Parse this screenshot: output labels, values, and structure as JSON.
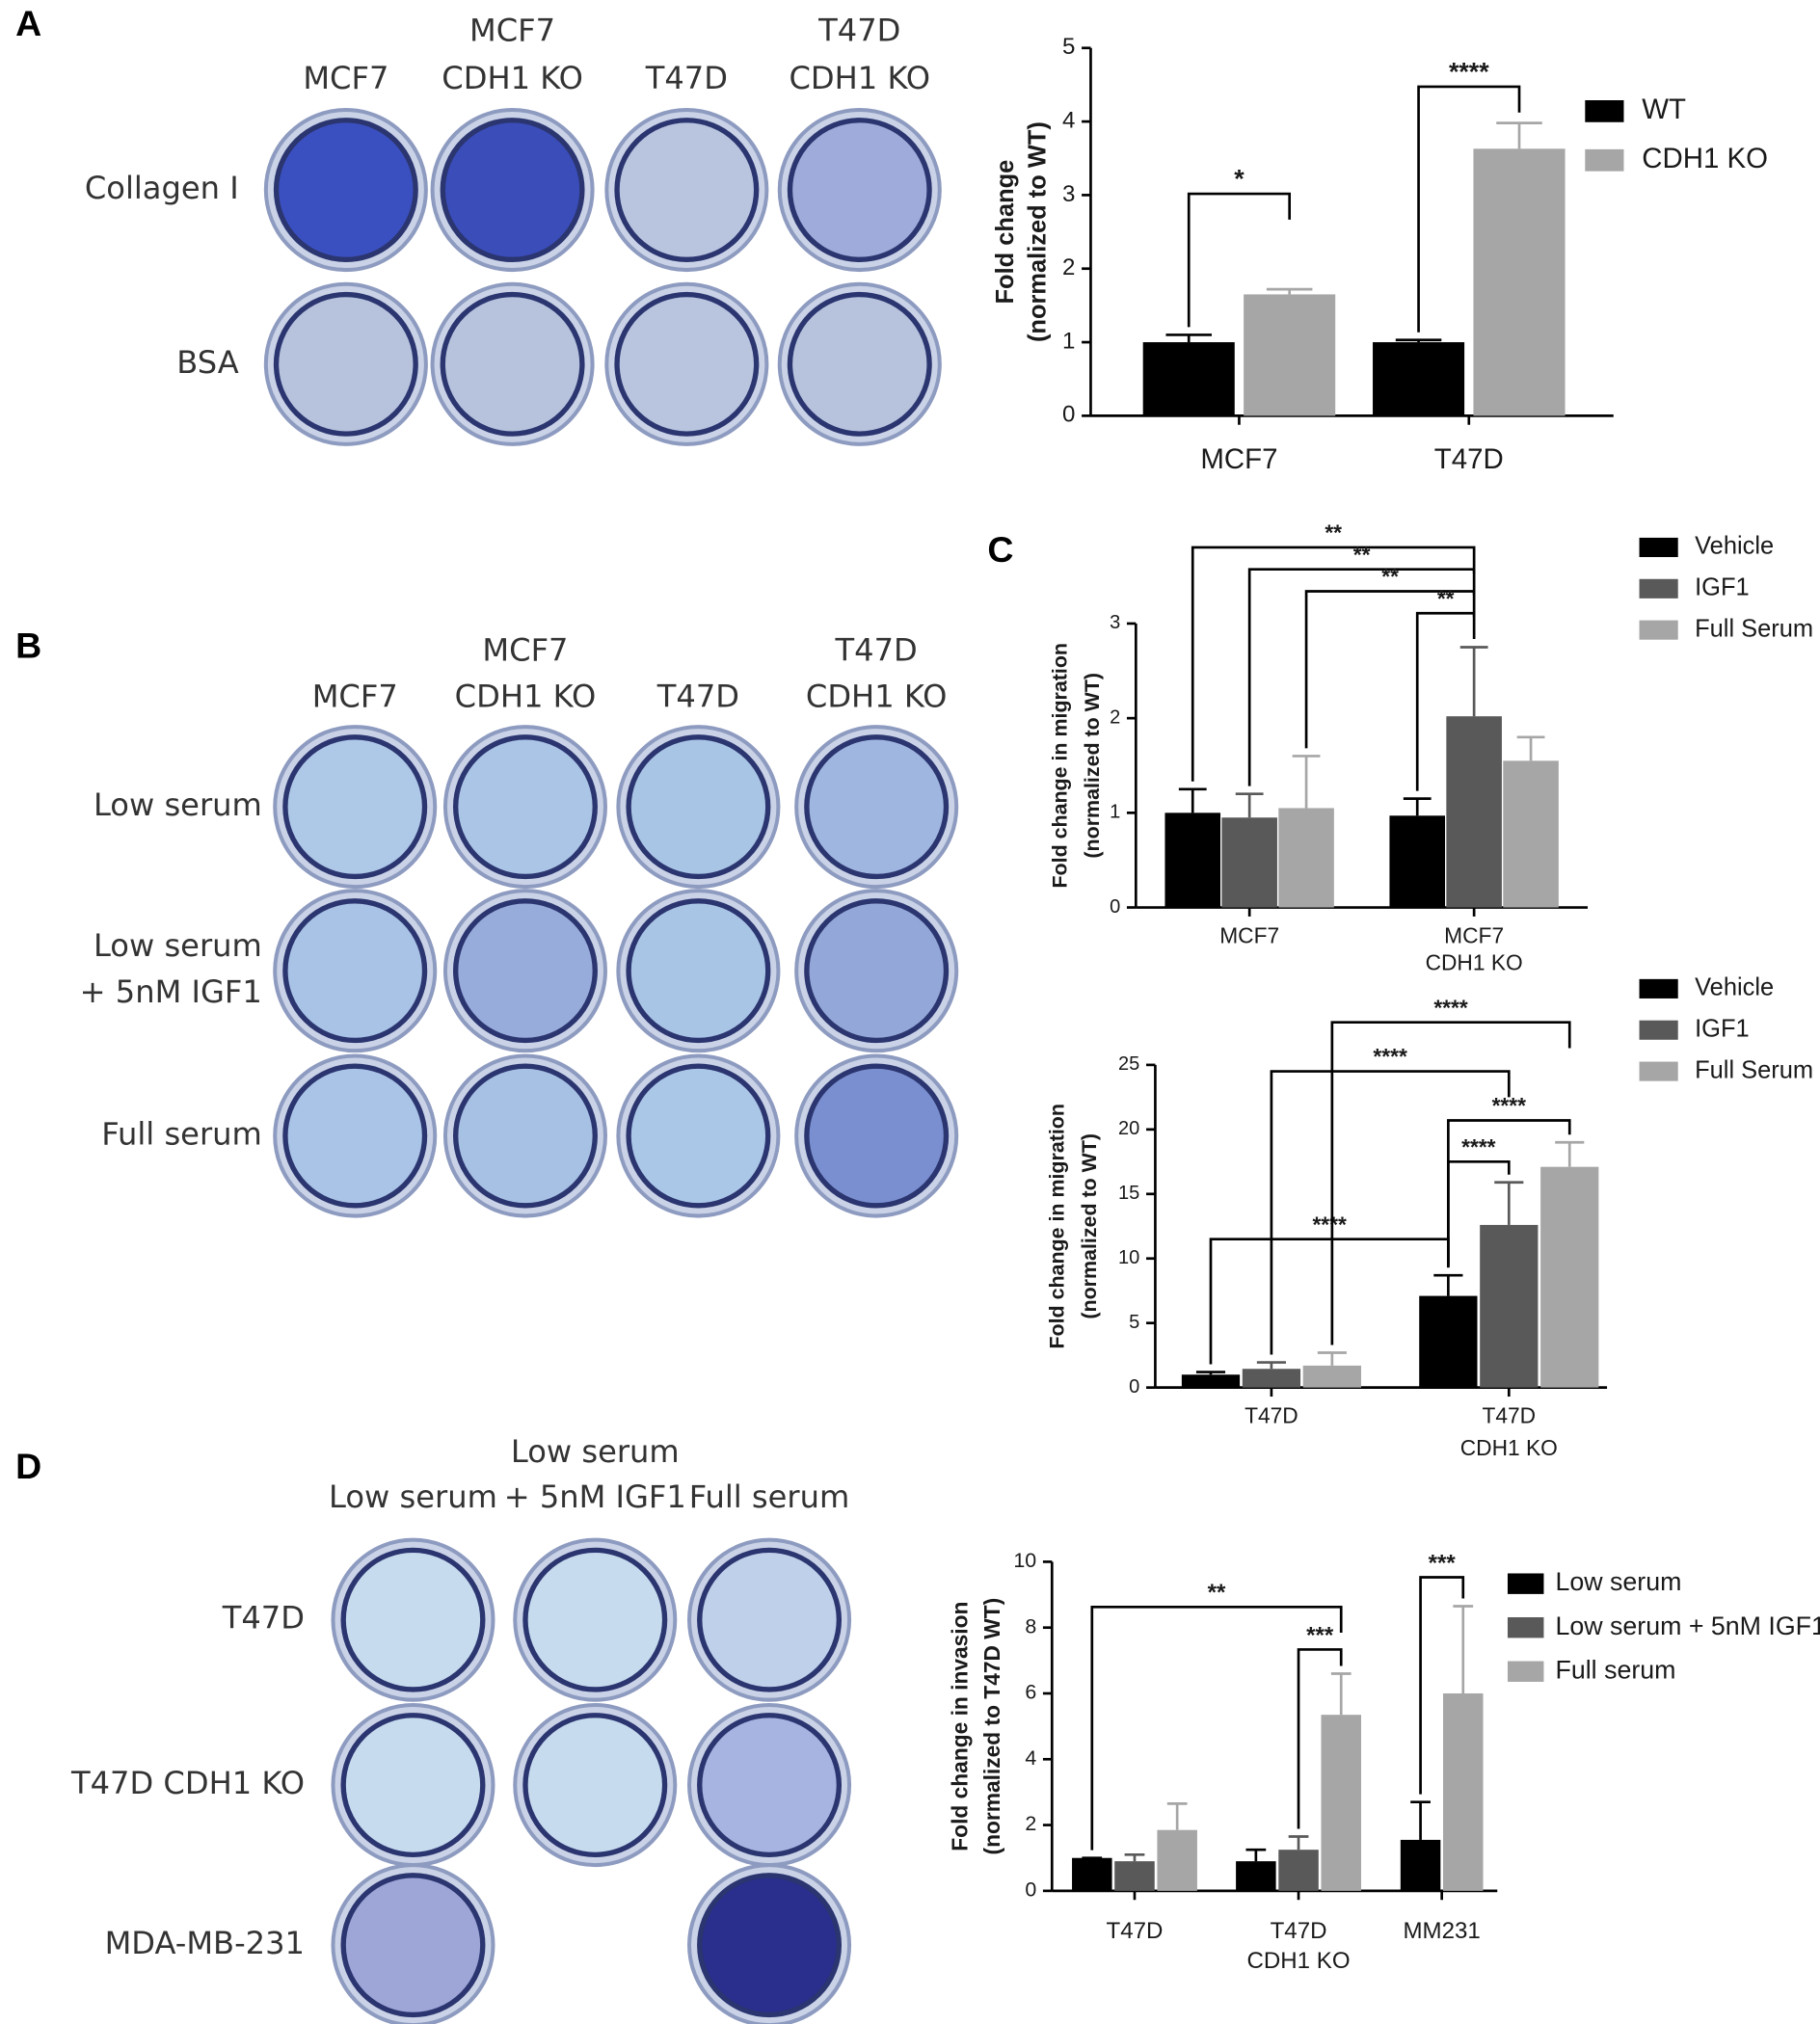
{
  "panel_labels": [
    "A",
    "B",
    "C",
    "D"
  ],
  "wells": [
    {
      "columns": [
        [
          "MCF7"
        ],
        [
          "MCF7",
          "CDH1 KO"
        ],
        [
          "T47D"
        ],
        [
          "T47D",
          "CDH1 KO"
        ]
      ],
      "rows": [
        [
          "Collagen I"
        ],
        [
          "BSA"
        ]
      ]
    },
    {
      "columns": [
        [
          "MCF7"
        ],
        [
          "MCF7",
          "CDH1 KO"
        ],
        [
          "T47D"
        ],
        [
          "T47D",
          "CDH1 KO"
        ]
      ],
      "rows": [
        [
          "Low serum"
        ],
        [
          "Low serum",
          "+ 5nM IGF1"
        ],
        [
          "Full serum"
        ]
      ]
    },
    {
      "columns": [
        [
          "Low serum"
        ],
        [
          "Low serum",
          "+ 5nM IGF1"
        ],
        [
          "Full serum"
        ]
      ],
      "rows": [
        [
          "T47D"
        ],
        [
          "T47D CDH1 KO"
        ],
        [
          "MDA-MB-231"
        ]
      ]
    }
  ],
  "chart_data": [
    {
      "type": "bar",
      "ylabel": [
        "Fold change",
        "(normalized to WT)"
      ],
      "categories": [
        [
          "MCF7"
        ],
        [
          "T47D"
        ]
      ],
      "series": [
        {
          "name": "WT",
          "color": "#000000",
          "values": [
            1.0,
            1.0
          ],
          "errors": [
            0.1,
            0.03
          ]
        },
        {
          "name": "CDH1 KO",
          "color": "#a6a6a6",
          "values": [
            1.65,
            3.63
          ],
          "errors": [
            0.07,
            0.35
          ]
        }
      ],
      "ylim": [
        0,
        5
      ],
      "yticks": [
        0,
        1,
        2,
        3,
        4,
        5
      ],
      "significance": [
        {
          "label": "*",
          "from": [
            0,
            0
          ],
          "to": [
            1,
            0
          ]
        },
        {
          "label": "****",
          "from": [
            0,
            1
          ],
          "to": [
            1,
            1
          ]
        }
      ]
    },
    {
      "type": "bar",
      "ylabel": [
        "Fold change in migration",
        "(normalized to WT)"
      ],
      "categories": [
        [
          "MCF7"
        ],
        [
          "MCF7",
          "CDH1 KO"
        ]
      ],
      "series": [
        {
          "name": "Vehicle",
          "color": "#000000",
          "values": [
            1.0,
            0.97
          ],
          "errors": [
            0.25,
            0.18
          ]
        },
        {
          "name": "IGF1",
          "color": "#595959",
          "values": [
            0.95,
            2.02
          ],
          "errors": [
            0.25,
            0.73
          ]
        },
        {
          "name": "Full Serum",
          "color": "#a6a6a6",
          "values": [
            1.05,
            1.55
          ],
          "errors": [
            0.55,
            0.25
          ]
        }
      ],
      "ylim": [
        0,
        3
      ],
      "yticks": [
        0,
        1,
        2,
        3
      ],
      "significance": [
        {
          "label": "**",
          "from": [
            0,
            0
          ],
          "to": [
            1,
            1
          ]
        },
        {
          "label": "**",
          "from": [
            1,
            0
          ],
          "to": [
            1,
            1
          ]
        },
        {
          "label": "**",
          "from": [
            2,
            0
          ],
          "to": [
            1,
            1
          ]
        },
        {
          "label": "**",
          "from": [
            0,
            1
          ],
          "to": [
            1,
            1
          ]
        }
      ]
    },
    {
      "type": "bar",
      "ylabel": [
        "Fold change in migration",
        "(normalized to WT)"
      ],
      "categories": [
        [
          "T47D"
        ],
        [
          "T47D",
          "CDH1 KO"
        ]
      ],
      "series": [
        {
          "name": "Vehicle",
          "color": "#000000",
          "values": [
            1.0,
            7.1
          ],
          "errors": [
            0.2,
            1.6
          ]
        },
        {
          "name": "IGF1",
          "color": "#595959",
          "values": [
            1.45,
            12.6
          ],
          "errors": [
            0.5,
            3.3
          ]
        },
        {
          "name": "Full Serum",
          "color": "#a6a6a6",
          "values": [
            1.7,
            17.1
          ],
          "errors": [
            1.0,
            1.9
          ]
        }
      ],
      "ylim": [
        0,
        25
      ],
      "yticks": [
        0,
        5,
        10,
        15,
        20,
        25
      ],
      "significance": [
        {
          "label": "****",
          "from": [
            0,
            0
          ],
          "to": [
            0,
            1
          ]
        },
        {
          "label": "****",
          "from": [
            1,
            0
          ],
          "to": [
            1,
            1
          ]
        },
        {
          "label": "****",
          "from": [
            2,
            0
          ],
          "to": [
            2,
            1
          ]
        },
        {
          "label": "****",
          "from": [
            0,
            1
          ],
          "to": [
            1,
            1
          ]
        },
        {
          "label": "****",
          "from": [
            0,
            1
          ],
          "to": [
            2,
            1
          ]
        }
      ]
    },
    {
      "type": "bar",
      "ylabel": [
        "Fold change in invasion",
        "(normalized to T47D WT)"
      ],
      "categories": [
        [
          "T47D"
        ],
        [
          "T47D",
          "CDH1 KO"
        ],
        [
          "MM231"
        ]
      ],
      "series": [
        {
          "name": "Low serum",
          "color": "#000000",
          "values": [
            1.0,
            0.9,
            1.55
          ],
          "errors": [
            0,
            0.35,
            1.15
          ]
        },
        {
          "name": "Low serum + 5nM IGF1",
          "color": "#595959",
          "values": [
            0.9,
            1.25,
            null
          ],
          "errors": [
            0.2,
            0.4,
            null
          ]
        },
        {
          "name": "Full serum",
          "color": "#a6a6a6",
          "values": [
            1.85,
            5.35,
            6.0
          ],
          "errors": [
            0.8,
            1.25,
            2.65
          ]
        }
      ],
      "ylim": [
        0,
        10
      ],
      "yticks": [
        0,
        2,
        4,
        6,
        8,
        10
      ],
      "significance": [
        {
          "label": "**",
          "from": [
            0,
            0
          ],
          "to": [
            2,
            1
          ]
        },
        {
          "label": "***",
          "from": [
            1,
            1
          ],
          "to": [
            2,
            1
          ]
        },
        {
          "label": "***",
          "from": [
            0,
            2
          ],
          "to": [
            2,
            2
          ]
        }
      ]
    }
  ]
}
